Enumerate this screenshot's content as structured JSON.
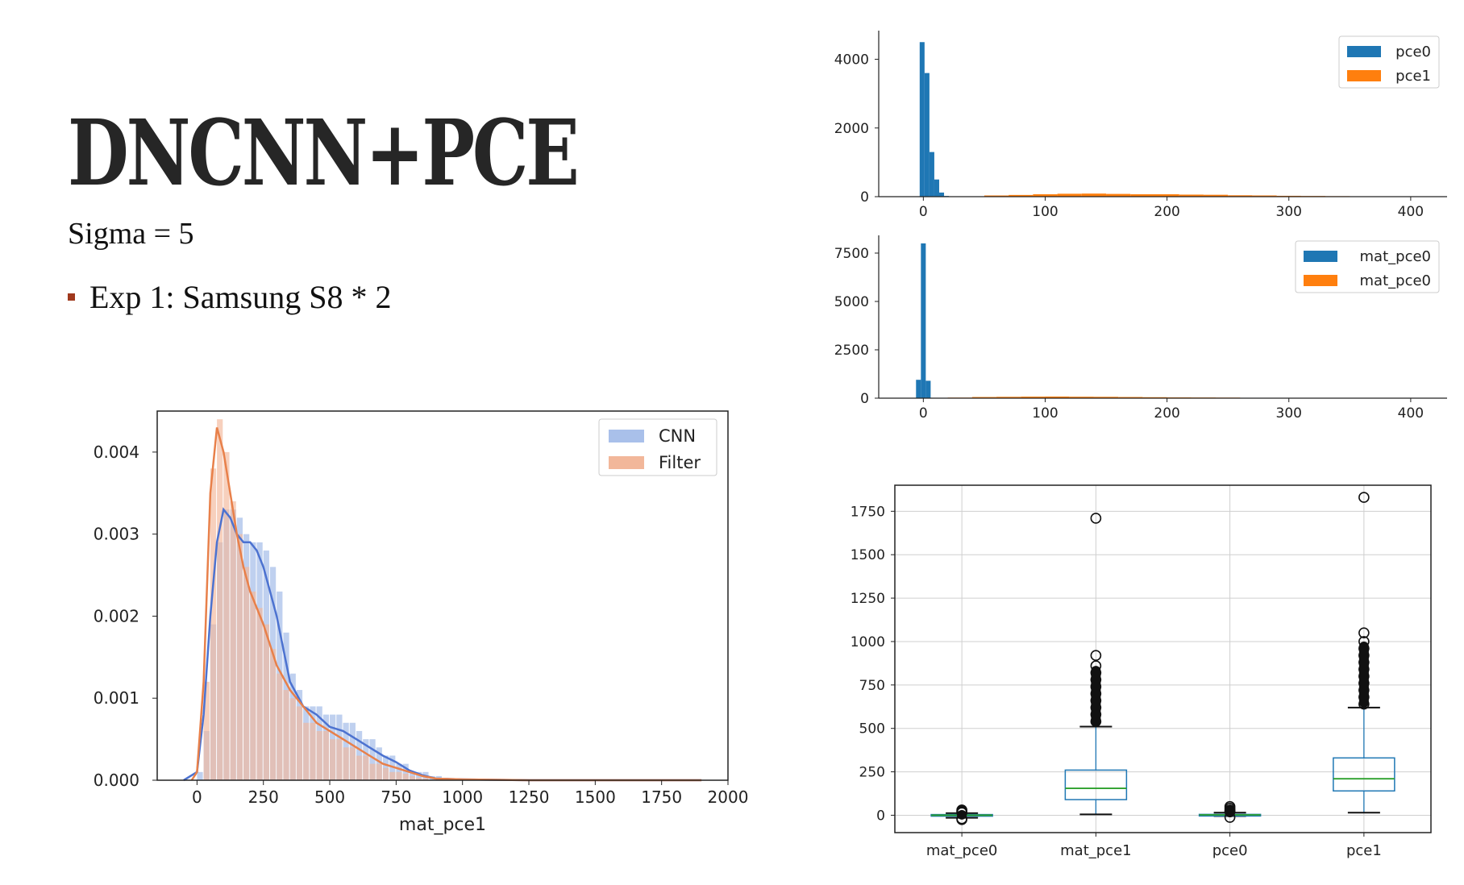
{
  "slide": {
    "title": "DNCNN+PCE",
    "subtitle": "Sigma = 5",
    "bullet": "Exp 1: Samsung S8 * 2"
  },
  "colors": {
    "cnn_fill": "#a9c0ea",
    "cnn_line": "#4c72d0",
    "filter_fill": "#f2b79a",
    "filter_line": "#e8804a",
    "pce0": "#1f77b4",
    "pce1": "#ff7f0e",
    "median": "#2ca02c",
    "bullet": "#a0391d"
  },
  "chart_data": [
    {
      "type": "histogram+kde",
      "xlabel": "mat_pce1",
      "ylabel": "",
      "xlim": [
        -150,
        2000
      ],
      "ylim": [
        0,
        0.0045
      ],
      "xticks": [
        "0",
        "250",
        "500",
        "750",
        "1000",
        "1250",
        "1500",
        "1750",
        "2000"
      ],
      "yticks": [
        "0.000",
        "0.001",
        "0.002",
        "0.003",
        "0.004"
      ],
      "legend": "top-right",
      "bin_width": 25,
      "series": [
        {
          "name": "CNN",
          "bins_start": [
            0,
            25,
            50,
            75,
            100,
            125,
            150,
            175,
            200,
            225,
            250,
            275,
            300,
            325,
            350,
            375,
            400,
            425,
            450,
            475,
            500,
            525,
            550,
            575,
            600,
            625,
            650,
            675,
            700,
            725,
            750,
            775,
            800,
            825,
            850,
            875,
            900,
            925,
            950
          ],
          "bins_density": [
            0.0001,
            0.0006,
            0.0019,
            0.0029,
            0.0033,
            0.0033,
            0.0032,
            0.003,
            0.0029,
            0.0029,
            0.0028,
            0.0026,
            0.0023,
            0.0018,
            0.0013,
            0.0011,
            0.0009,
            0.0009,
            0.0009,
            0.0008,
            0.0008,
            0.0008,
            0.0007,
            0.0007,
            0.0006,
            0.0005,
            0.0005,
            0.0004,
            0.0003,
            0.0003,
            0.0002,
            0.0002,
            0.0001,
            0.0001,
            0.0001,
            5e-05,
            5e-05,
            3e-05,
            2e-05
          ],
          "kde_x": [
            -50,
            0,
            25,
            50,
            75,
            100,
            125,
            150,
            175,
            200,
            225,
            250,
            275,
            300,
            350,
            400,
            450,
            500,
            550,
            600,
            650,
            700,
            750,
            800,
            850,
            900,
            1000,
            1250,
            1500,
            1750,
            1900
          ],
          "kde_y": [
            0,
            0.0001,
            0.0008,
            0.002,
            0.0029,
            0.0033,
            0.0032,
            0.003,
            0.0029,
            0.0029,
            0.0028,
            0.0026,
            0.0023,
            0.002,
            0.0012,
            0.0009,
            0.0008,
            0.00065,
            0.0006,
            0.0005,
            0.0004,
            0.0003,
            0.00022,
            0.00012,
            6e-05,
            2e-05,
            1e-05,
            0,
            0,
            0,
            0
          ]
        },
        {
          "name": "Filter",
          "bins_start": [
            25,
            50,
            75,
            100,
            125,
            150,
            175,
            200,
            225,
            250,
            275,
            300,
            325,
            350,
            375,
            400,
            425,
            450,
            475,
            500,
            525,
            550,
            575,
            600,
            625,
            650,
            675,
            700,
            725,
            750,
            775,
            800,
            825,
            850
          ],
          "bins_density": [
            0.0012,
            0.0038,
            0.0044,
            0.004,
            0.0034,
            0.003,
            0.0026,
            0.0023,
            0.0021,
            0.0019,
            0.0016,
            0.0013,
            0.0011,
            0.001,
            0.0009,
            0.0007,
            0.0007,
            0.0006,
            0.0006,
            0.0005,
            0.0005,
            0.0004,
            0.0004,
            0.0003,
            0.0003,
            0.0002,
            0.0002,
            0.00015,
            0.0001,
            0.0001,
            8e-05,
            5e-05,
            3e-05,
            2e-05
          ],
          "kde_x": [
            -20,
            0,
            25,
            50,
            75,
            100,
            125,
            150,
            175,
            200,
            250,
            300,
            350,
            400,
            450,
            500,
            550,
            600,
            650,
            700,
            750,
            800,
            850,
            900,
            1000,
            1250,
            1500,
            1750,
            1900
          ],
          "kde_y": [
            0,
            0.0001,
            0.0012,
            0.0035,
            0.0043,
            0.004,
            0.0035,
            0.003,
            0.0026,
            0.0023,
            0.0019,
            0.0014,
            0.0011,
            0.0009,
            0.0007,
            0.0006,
            0.0005,
            0.0004,
            0.0003,
            0.0002,
            0.00015,
            0.0001,
            5e-05,
            2e-05,
            1e-05,
            0,
            0,
            0,
            0
          ]
        }
      ]
    },
    {
      "type": "histogram",
      "xlim": [
        -30,
        410
      ],
      "ylim": [
        0,
        4600
      ],
      "xticks": [
        "0",
        "100",
        "200",
        "300",
        "400"
      ],
      "yticks": [
        "0",
        "2000",
        "4000"
      ],
      "legend": "top-right",
      "series": [
        {
          "name": "pce0",
          "bins_start": [
            -3,
            1,
            5,
            9,
            13,
            17
          ],
          "bin_width": 4,
          "counts": [
            4500,
            3600,
            1300,
            500,
            120,
            20
          ]
        },
        {
          "name": "pce1",
          "bins_start": [
            50,
            70,
            90,
            110,
            130,
            150,
            170,
            190,
            210,
            230,
            250,
            270,
            290,
            310,
            330,
            350,
            370,
            390
          ],
          "bin_width": 20,
          "counts": [
            35,
            50,
            70,
            85,
            90,
            80,
            70,
            70,
            60,
            55,
            40,
            35,
            25,
            20,
            15,
            10,
            8,
            5
          ]
        }
      ]
    },
    {
      "type": "histogram",
      "xlim": [
        -30,
        410
      ],
      "ylim": [
        0,
        8000
      ],
      "xticks": [
        "0",
        "100",
        "200",
        "300",
        "400"
      ],
      "yticks": [
        "0",
        "2500",
        "5000",
        "7500"
      ],
      "legend": "top-right",
      "series": [
        {
          "name": "mat_pce0",
          "bins_start": [
            -6,
            -2,
            2
          ],
          "bin_width": 4,
          "counts": [
            950,
            8000,
            900
          ]
        },
        {
          "name": "mat_pce0",
          "bins_start": [
            20,
            40,
            60,
            80,
            100,
            120,
            140,
            160,
            180,
            200,
            220,
            240,
            260,
            280,
            300,
            320,
            340
          ],
          "bin_width": 20,
          "counts": [
            30,
            60,
            70,
            80,
            85,
            75,
            70,
            60,
            50,
            40,
            35,
            30,
            20,
            15,
            12,
            8,
            5
          ]
        }
      ]
    },
    {
      "type": "boxplot",
      "ylim": [
        -100,
        1900
      ],
      "yticks": [
        "0",
        "250",
        "500",
        "750",
        "1000",
        "1250",
        "1500",
        "1750"
      ],
      "grid": true,
      "categories": [
        "mat_pce0",
        "mat_pce1",
        "pce0",
        "pce1"
      ],
      "boxes": [
        {
          "whisker_low": -15,
          "q1": -3,
          "median": 0,
          "q3": 4,
          "whisker_high": 12,
          "outliers": [
            -25,
            -20,
            15,
            20,
            25,
            30
          ]
        },
        {
          "whisker_low": 5,
          "q1": 90,
          "median": 155,
          "q3": 260,
          "whisker_high": 510,
          "outliers": [
            540,
            580,
            620,
            660,
            700,
            740,
            780,
            820,
            860,
            920,
            1710
          ]
        },
        {
          "whisker_low": -5,
          "q1": 0,
          "median": 2,
          "q3": 5,
          "whisker_high": 15,
          "outliers": [
            -12,
            20,
            25,
            30,
            40,
            50
          ]
        },
        {
          "whisker_low": 15,
          "q1": 140,
          "median": 210,
          "q3": 330,
          "whisker_high": 620,
          "outliers": [
            640,
            680,
            720,
            760,
            800,
            840,
            880,
            920,
            960,
            1000,
            1050,
            1830
          ]
        }
      ]
    }
  ]
}
